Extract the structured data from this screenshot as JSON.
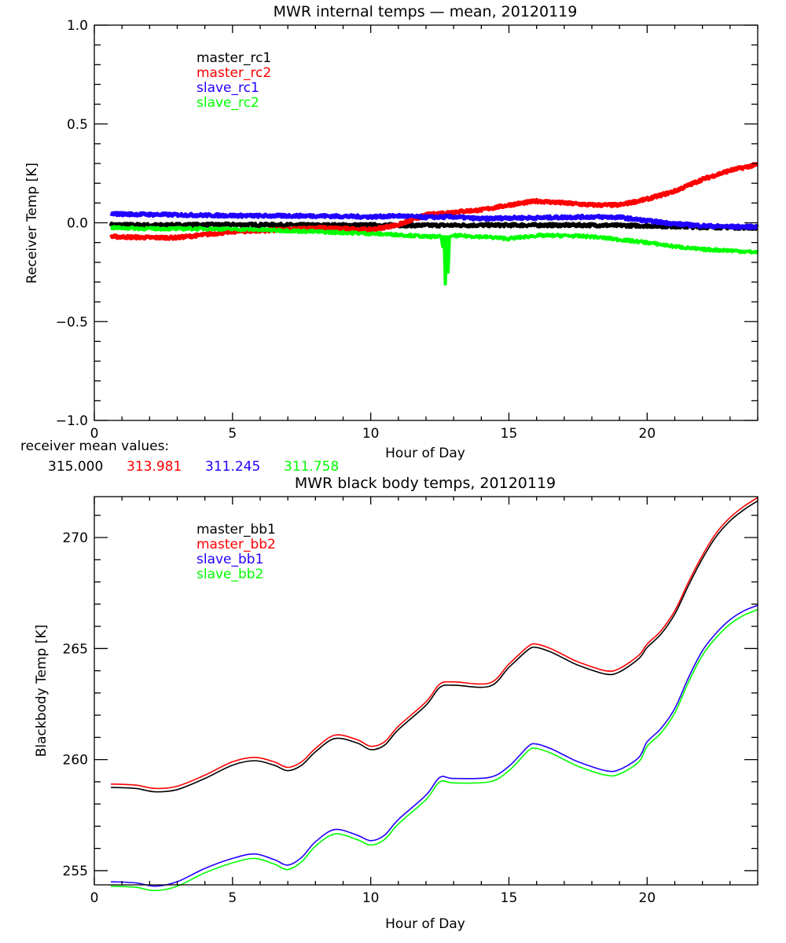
{
  "colors": {
    "black": "#000000",
    "red": "#ff0000",
    "blue": "#2000ff",
    "green": "#00ff00"
  },
  "receiver_mean": {
    "label": "receiver mean values:",
    "values": [
      {
        "text": "315.000",
        "color": "#000000"
      },
      {
        "text": "313.981",
        "color": "#ff0000"
      },
      {
        "text": "311.245",
        "color": "#2000ff"
      },
      {
        "text": "311.758",
        "color": "#00ff00"
      }
    ]
  },
  "chart_data": [
    {
      "type": "line",
      "title": "MWR internal temps — mean, 20120119",
      "xlabel": "Hour of Day",
      "ylabel": "Receiver Temp [K]",
      "xlim": [
        0,
        24
      ],
      "ylim": [
        -1.0,
        1.0
      ],
      "xticks": [
        0,
        5,
        10,
        15,
        20
      ],
      "xtick_labels": [
        "0",
        "5",
        "10",
        "15",
        "20"
      ],
      "yticks": [
        -1.0,
        -0.5,
        0.0,
        0.5,
        1.0
      ],
      "ytick_labels": [
        "−1.0",
        "−0.5",
        "0.0",
        "0.5",
        "1.0"
      ],
      "x_minor_step": 1,
      "y_minor_step": 0.1,
      "grid": false,
      "legend_placement": "top-left",
      "series": [
        {
          "name": "master_rc1",
          "color": "#000000",
          "x": [
            0.6,
            2,
            4,
            6,
            8,
            10,
            12,
            14,
            16,
            18,
            20,
            22,
            24
          ],
          "y": [
            -0.01,
            -0.012,
            -0.01,
            -0.01,
            -0.012,
            -0.012,
            -0.013,
            -0.012,
            -0.012,
            -0.012,
            -0.015,
            -0.022,
            -0.025
          ]
        },
        {
          "name": "master_rc2",
          "color": "#ff0000",
          "x": [
            0.6,
            2,
            3,
            4,
            5,
            6,
            7,
            8,
            9,
            10,
            11,
            12,
            13,
            14,
            15,
            16,
            17,
            18,
            19,
            20,
            21,
            22,
            23,
            24
          ],
          "y": [
            -0.07,
            -0.075,
            -0.075,
            -0.06,
            -0.045,
            -0.04,
            -0.035,
            -0.025,
            -0.03,
            -0.035,
            -0.01,
            0.04,
            0.055,
            0.065,
            0.09,
            0.11,
            0.1,
            0.09,
            0.09,
            0.12,
            0.16,
            0.22,
            0.265,
            0.295
          ]
        },
        {
          "name": "slave_rc1",
          "color": "#2000ff",
          "x": [
            0.6,
            2,
            4,
            6,
            8,
            10,
            11,
            12,
            13,
            14,
            15,
            16,
            17,
            18,
            19,
            20,
            21,
            22,
            23,
            24
          ],
          "y": [
            0.045,
            0.042,
            0.038,
            0.035,
            0.035,
            0.03,
            0.035,
            0.028,
            0.03,
            0.02,
            0.025,
            0.025,
            0.028,
            0.03,
            0.028,
            0.01,
            -0.005,
            -0.015,
            -0.02,
            -0.02
          ]
        },
        {
          "name": "slave_rc2",
          "color": "#00ff00",
          "x": [
            0.6,
            2,
            4,
            6,
            8,
            10,
            11,
            12,
            12.55,
            12.6,
            12.65,
            12.7,
            12.75,
            12.8,
            12.85,
            13,
            14,
            15,
            16,
            17,
            18,
            19,
            20,
            21,
            22,
            23,
            24
          ],
          "y": [
            -0.025,
            -0.03,
            -0.03,
            -0.035,
            -0.045,
            -0.055,
            -0.06,
            -0.07,
            -0.07,
            -0.12,
            -0.07,
            -0.31,
            -0.07,
            -0.25,
            -0.07,
            -0.065,
            -0.07,
            -0.08,
            -0.065,
            -0.065,
            -0.07,
            -0.085,
            -0.1,
            -0.12,
            -0.135,
            -0.14,
            -0.15
          ]
        }
      ]
    },
    {
      "type": "line",
      "title": "MWR black body temps, 20120119",
      "xlabel": "Hour of Day",
      "ylabel": "Blackbody Temp [K]",
      "xlim": [
        0,
        24
      ],
      "ylim": [
        254.36,
        271.84
      ],
      "xticks": [
        0,
        5,
        10,
        15,
        20
      ],
      "xtick_labels": [
        "0",
        "5",
        "10",
        "15",
        "20"
      ],
      "yticks": [
        255,
        260,
        265,
        270
      ],
      "ytick_labels": [
        "255",
        "260",
        "265",
        "270"
      ],
      "x_minor_step": 1,
      "y_minor_step": 1,
      "grid": false,
      "legend_placement": "top-left",
      "series": [
        {
          "name": "master_bb1",
          "color": "#000000",
          "x": [
            0.6,
            1.5,
            2.2,
            3,
            4,
            5,
            5.8,
            6.5,
            7,
            7.5,
            8,
            8.7,
            9.5,
            10,
            10.5,
            11,
            12,
            12.5,
            13,
            14.3,
            15,
            15.7,
            16,
            16.5,
            17,
            17.5,
            18.5,
            19,
            19.7,
            20,
            20.5,
            21,
            21.5,
            22,
            22.5,
            23,
            23.5,
            24
          ],
          "y": [
            258.75,
            258.7,
            258.55,
            258.65,
            259.15,
            259.75,
            259.95,
            259.75,
            259.5,
            259.75,
            260.35,
            260.95,
            260.75,
            260.45,
            260.65,
            261.35,
            262.45,
            263.25,
            263.35,
            263.3,
            264.15,
            264.95,
            265.05,
            264.85,
            264.55,
            264.25,
            263.85,
            263.95,
            264.55,
            265.05,
            265.65,
            266.55,
            267.85,
            269.05,
            270.05,
            270.75,
            271.25,
            271.65
          ]
        },
        {
          "name": "master_bb2",
          "color": "#ff0000",
          "x": [
            0.6,
            1.5,
            2.2,
            3,
            4,
            5,
            5.8,
            6.5,
            7,
            7.5,
            8,
            8.7,
            9.5,
            10,
            10.5,
            11,
            12,
            12.5,
            13,
            14.3,
            15,
            15.7,
            16,
            16.5,
            17,
            17.5,
            18.5,
            19,
            19.7,
            20,
            20.5,
            21,
            21.5,
            22,
            22.5,
            23,
            23.5,
            24
          ],
          "y": [
            258.9,
            258.85,
            258.7,
            258.8,
            259.3,
            259.9,
            260.1,
            259.9,
            259.65,
            259.9,
            260.5,
            261.1,
            260.9,
            260.6,
            260.8,
            261.5,
            262.6,
            263.4,
            263.5,
            263.45,
            264.3,
            265.1,
            265.2,
            265.0,
            264.7,
            264.4,
            264.0,
            264.1,
            264.7,
            265.2,
            265.8,
            266.7,
            268.0,
            269.2,
            270.2,
            270.9,
            271.4,
            271.8
          ]
        },
        {
          "name": "slave_bb1",
          "color": "#2000ff",
          "x": [
            0.6,
            1.5,
            2.2,
            3,
            4,
            5,
            5.8,
            6.5,
            7,
            7.5,
            8,
            8.7,
            9.5,
            10,
            10.5,
            11,
            12,
            12.5,
            13,
            14.3,
            15,
            15.7,
            16,
            16.5,
            17,
            17.5,
            18.5,
            19,
            19.7,
            20,
            20.5,
            21,
            21.5,
            22,
            22.5,
            23,
            23.5,
            24
          ],
          "y": [
            254.5,
            254.45,
            254.3,
            254.5,
            255.1,
            255.55,
            255.75,
            255.5,
            255.25,
            255.6,
            256.3,
            256.85,
            256.6,
            256.35,
            256.6,
            257.3,
            258.4,
            259.2,
            259.15,
            259.2,
            259.7,
            260.6,
            260.7,
            260.5,
            260.2,
            259.9,
            259.5,
            259.55,
            260.1,
            260.8,
            261.4,
            262.3,
            263.7,
            264.9,
            265.7,
            266.3,
            266.7,
            266.95
          ]
        },
        {
          "name": "slave_bb2",
          "color": "#00ff00",
          "x": [
            0.6,
            1.5,
            2.2,
            3,
            4,
            5,
            5.8,
            6.5,
            7,
            7.5,
            8,
            8.7,
            9.5,
            10,
            10.5,
            11,
            12,
            12.5,
            13,
            14.3,
            15,
            15.7,
            16,
            16.5,
            17,
            17.5,
            18.5,
            19,
            19.7,
            20,
            20.5,
            21,
            21.5,
            22,
            22.5,
            23,
            23.5,
            24
          ],
          "y": [
            254.3,
            254.25,
            254.1,
            254.3,
            254.9,
            255.35,
            255.55,
            255.3,
            255.05,
            255.4,
            256.1,
            256.65,
            256.4,
            256.15,
            256.4,
            257.1,
            258.2,
            259.0,
            258.95,
            259.0,
            259.5,
            260.4,
            260.5,
            260.3,
            260.0,
            259.7,
            259.3,
            259.35,
            259.9,
            260.6,
            261.2,
            262.1,
            263.5,
            264.7,
            265.5,
            266.1,
            266.5,
            266.75
          ]
        }
      ]
    }
  ]
}
